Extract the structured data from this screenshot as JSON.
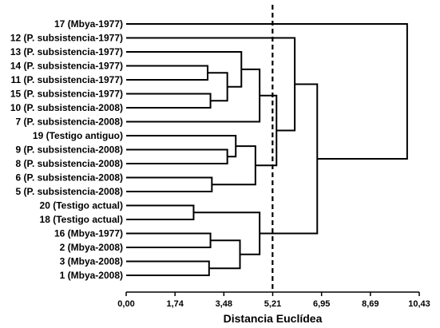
{
  "chart_data": {
    "type": "dendrogram",
    "xlabel": "Distancia Euclídea",
    "xlim": [
      0,
      10.43
    ],
    "xticks": [
      "0,00",
      "1,74",
      "3,48",
      "5,21",
      "6,95",
      "8,69",
      "10,43"
    ],
    "cut_line": 5.21,
    "leaves": [
      "17 (Mbya-1977)",
      "12 (P. subsistencia-1977)",
      "13 (P. subsistencia-1977)",
      "14 (P. subsistencia-1977)",
      "11 (P. subsistencia-1977)",
      "15 (P. subsistencia-1977)",
      "10 (P. subsistencia-2008)",
      "7 (P. subsistencia-2008)",
      "19 (Testigo antiguo)",
      "9 (P. subsistencia-2008)",
      "8 (P. subsistencia-2008)",
      "6 (P. subsistencia-2008)",
      "5 (P. subsistencia-2008)",
      "20 (Testigo actual)",
      "18 (Testigo actual)",
      "16 (Mbya-1977)",
      "2 (Mbya-2008)",
      "3 (Mbya-2008)",
      "1 (Mbya-2008)"
    ],
    "merges": [
      {
        "id": "a",
        "children": [
          3,
          4
        ],
        "height": 2.9
      },
      {
        "id": "b",
        "children": [
          5,
          6
        ],
        "height": 3.0
      },
      {
        "id": "c",
        "children": [
          "a",
          "b"
        ],
        "height": 3.6
      },
      {
        "id": "d",
        "children": [
          2,
          "c"
        ],
        "height": 4.1
      },
      {
        "id": "e",
        "children": [
          "d",
          7
        ],
        "height": 4.75
      },
      {
        "id": "f",
        "children": [
          9,
          10
        ],
        "height": 3.6
      },
      {
        "id": "g",
        "children": [
          8,
          "f"
        ],
        "height": 3.9
      },
      {
        "id": "h",
        "children": [
          11,
          12
        ],
        "height": 3.05
      },
      {
        "id": "i",
        "children": [
          "g",
          "h"
        ],
        "height": 4.6
      },
      {
        "id": "j",
        "children": [
          "e",
          "i"
        ],
        "height": 5.35
      },
      {
        "id": "k",
        "children": [
          1,
          "j"
        ],
        "height": 6.0
      },
      {
        "id": "l",
        "children": [
          13,
          14
        ],
        "height": 2.4
      },
      {
        "id": "m",
        "children": [
          15,
          16
        ],
        "height": 3.0
      },
      {
        "id": "n",
        "children": [
          17,
          18
        ],
        "height": 2.95
      },
      {
        "id": "o",
        "children": [
          "m",
          "n"
        ],
        "height": 4.05
      },
      {
        "id": "p",
        "children": [
          "l",
          "o"
        ],
        "height": 4.75
      },
      {
        "id": "q",
        "children": [
          "k",
          "p"
        ],
        "height": 6.8
      },
      {
        "id": "r",
        "children": [
          0,
          "q"
        ],
        "height": 10.0
      }
    ]
  }
}
